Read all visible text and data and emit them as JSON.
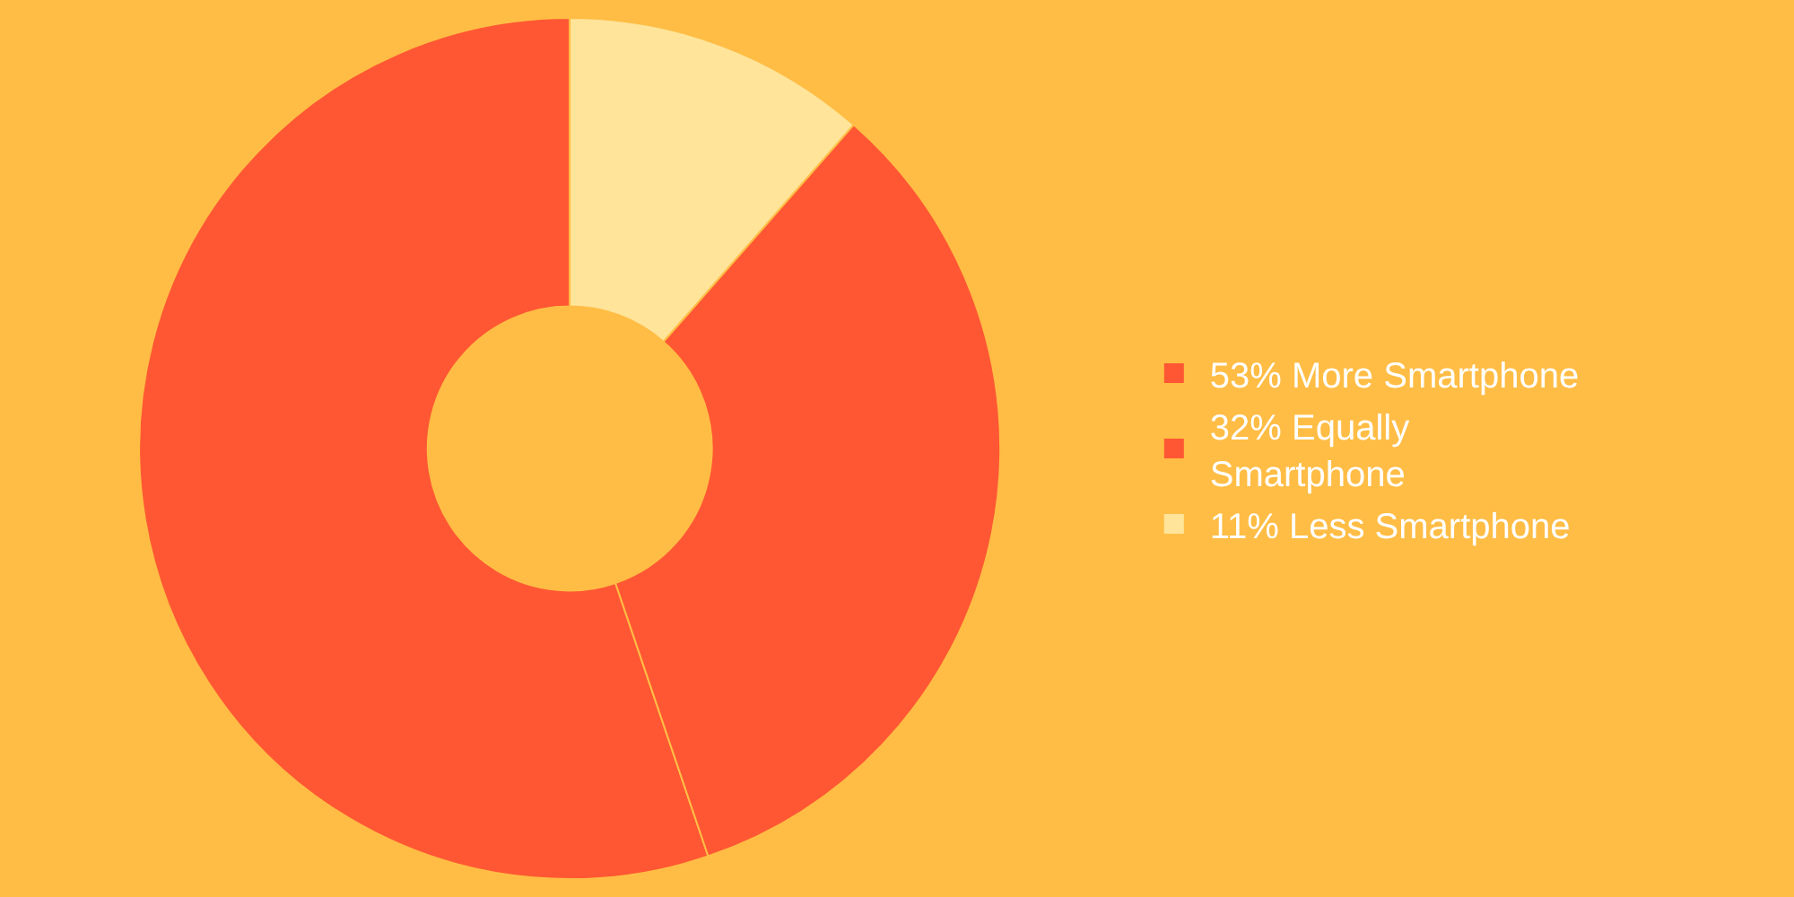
{
  "chart_data": {
    "type": "donut",
    "categories": [
      "53% More Smartphone",
      "32% Equally Smartphone",
      "11% Less Smartphone"
    ],
    "values": [
      53,
      32,
      11
    ],
    "colors": [
      "#ff5733",
      "#ff5733",
      "#ffe49a"
    ],
    "legend": "right"
  }
}
